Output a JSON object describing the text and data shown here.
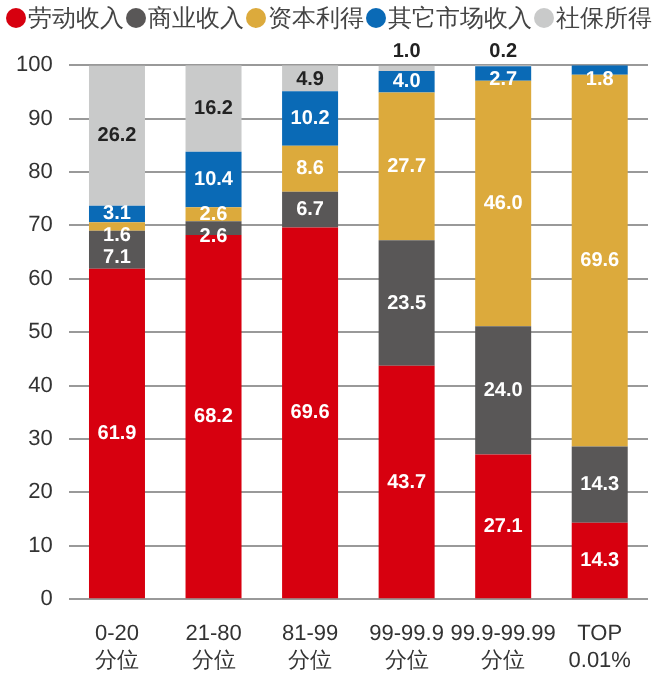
{
  "chart_data": {
    "type": "bar",
    "stacked": true,
    "categories": [
      "0-20\n分位",
      "21-80\n分位",
      "81-99\n分位",
      "99-99.9\n分位",
      "99.9-99.99\n分位",
      "TOP\n0.01%"
    ],
    "series": [
      {
        "name": "劳动收入",
        "color": "#d7000f",
        "values": [
          61.9,
          68.2,
          69.6,
          43.7,
          27.1,
          14.3
        ],
        "value_labels": [
          "61.9",
          "68.2",
          "69.6",
          "43.7",
          "27.1",
          "14.3"
        ]
      },
      {
        "name": "商业收入",
        "color": "#595757",
        "values": [
          7.1,
          2.6,
          6.7,
          23.5,
          24,
          14.3
        ],
        "value_labels": [
          "7.1",
          "2.6",
          "6.7",
          "23.5",
          "24.0",
          "14.3"
        ]
      },
      {
        "name": "资本利得",
        "color": "#dcaa3c",
        "values": [
          1.6,
          2.6,
          8.6,
          27.7,
          46,
          69.6
        ],
        "value_labels": [
          "1.6",
          "2.6",
          "8.6",
          "27.7",
          "46.0",
          "69.6"
        ]
      },
      {
        "name": "其它市场收入",
        "color": "#0a6ab6",
        "values": [
          3.1,
          10.4,
          10.2,
          4,
          2.7,
          1.8
        ],
        "value_labels": [
          "3.1",
          "10.4",
          "10.2",
          "4.0",
          "2.7",
          "1.8"
        ]
      },
      {
        "name": "社保所得",
        "color": "#c9caca",
        "values": [
          26.2,
          16.2,
          4.9,
          1,
          0.2,
          null
        ],
        "value_labels": [
          "26.2",
          "16.2",
          "4.9",
          "1.0",
          "0.2",
          null
        ]
      }
    ],
    "ylim": [
      0,
      100
    ],
    "yticks": [
      0,
      10,
      20,
      30,
      40,
      50,
      60,
      70,
      80,
      90,
      100
    ],
    "grid": "y",
    "legend": "top"
  }
}
